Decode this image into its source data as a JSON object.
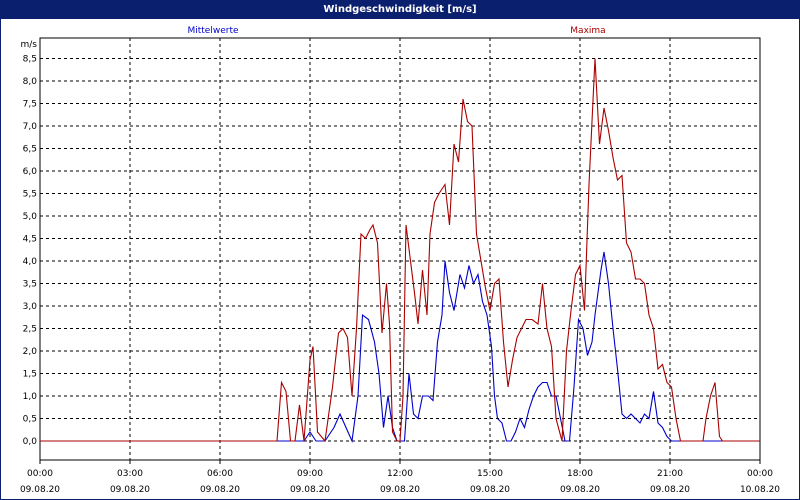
{
  "chart_data": {
    "type": "line",
    "title": "Windgeschwindigkeit [m/s]",
    "ylabel": "m/s",
    "ylim": [
      0,
      8.75
    ],
    "yticks": [
      "0,0",
      "0,5",
      "1,0",
      "1,5",
      "2,0",
      "2,5",
      "3,0",
      "3,5",
      "4,0",
      "4,5",
      "5,0",
      "5,5",
      "6,0",
      "6,5",
      "7,0",
      "7,5",
      "8,0",
      "8,5"
    ],
    "xlim": [
      0,
      24
    ],
    "xticks": [
      {
        "time": "00:00",
        "date": "09.08.20"
      },
      {
        "time": "03:00",
        "date": "09.08.20"
      },
      {
        "time": "06:00",
        "date": "09.08.20"
      },
      {
        "time": "09:00",
        "date": "09.08.20"
      },
      {
        "time": "12:00",
        "date": "09.08.20"
      },
      {
        "time": "15:00",
        "date": "09.08.20"
      },
      {
        "time": "18:00",
        "date": "09.08.20"
      },
      {
        "time": "21:00",
        "date": "09.08.20"
      },
      {
        "time": "00:00",
        "date": "10.08.20"
      }
    ],
    "grid": true,
    "series": [
      {
        "name": "Mittelwerte",
        "color": "#0000cc",
        "points": [
          [
            0,
            0
          ],
          [
            8.8,
            0
          ],
          [
            9.0,
            0.2
          ],
          [
            9.2,
            0
          ],
          [
            9.5,
            0
          ],
          [
            9.8,
            0.3
          ],
          [
            10.0,
            0.6
          ],
          [
            10.2,
            0.3
          ],
          [
            10.4,
            0
          ],
          [
            10.6,
            1.0
          ],
          [
            10.75,
            2.8
          ],
          [
            10.95,
            2.7
          ],
          [
            11.15,
            2.2
          ],
          [
            11.3,
            1.5
          ],
          [
            11.45,
            0.3
          ],
          [
            11.6,
            1.0
          ],
          [
            11.75,
            0.3
          ],
          [
            11.9,
            0
          ],
          [
            12.15,
            0
          ],
          [
            12.3,
            1.5
          ],
          [
            12.45,
            0.6
          ],
          [
            12.6,
            0.5
          ],
          [
            12.75,
            1.0
          ],
          [
            12.95,
            1.0
          ],
          [
            13.1,
            0.9
          ],
          [
            13.25,
            2.2
          ],
          [
            13.4,
            2.8
          ],
          [
            13.5,
            4.0
          ],
          [
            13.65,
            3.3
          ],
          [
            13.8,
            2.9
          ],
          [
            14.0,
            3.7
          ],
          [
            14.15,
            3.4
          ],
          [
            14.3,
            3.9
          ],
          [
            14.45,
            3.5
          ],
          [
            14.6,
            3.7
          ],
          [
            14.75,
            3.1
          ],
          [
            14.9,
            2.8
          ],
          [
            15.05,
            2.1
          ],
          [
            15.15,
            1.0
          ],
          [
            15.25,
            0.5
          ],
          [
            15.4,
            0.4
          ],
          [
            15.55,
            0
          ],
          [
            15.7,
            0
          ],
          [
            15.85,
            0.2
          ],
          [
            16.0,
            0.5
          ],
          [
            16.15,
            0.3
          ],
          [
            16.3,
            0.7
          ],
          [
            16.45,
            1.0
          ],
          [
            16.6,
            1.2
          ],
          [
            16.75,
            1.3
          ],
          [
            16.9,
            1.3
          ],
          [
            17.05,
            1.0
          ],
          [
            17.2,
            1.0
          ],
          [
            17.35,
            0.5
          ],
          [
            17.5,
            0
          ],
          [
            17.65,
            0
          ],
          [
            17.8,
            1.2
          ],
          [
            17.95,
            2.7
          ],
          [
            18.1,
            2.5
          ],
          [
            18.25,
            1.9
          ],
          [
            18.4,
            2.2
          ],
          [
            18.5,
            2.8
          ],
          [
            18.7,
            3.8
          ],
          [
            18.8,
            4.2
          ],
          [
            18.95,
            3.5
          ],
          [
            19.1,
            2.5
          ],
          [
            19.25,
            1.6
          ],
          [
            19.4,
            0.6
          ],
          [
            19.55,
            0.5
          ],
          [
            19.7,
            0.6
          ],
          [
            19.85,
            0.5
          ],
          [
            20.0,
            0.4
          ],
          [
            20.15,
            0.6
          ],
          [
            20.3,
            0.5
          ],
          [
            20.45,
            1.1
          ],
          [
            20.6,
            0.4
          ],
          [
            20.75,
            0.3
          ],
          [
            20.9,
            0.1
          ],
          [
            21.05,
            0
          ],
          [
            24,
            0
          ]
        ]
      },
      {
        "name": "Maxima",
        "color": "#aa0000",
        "points": [
          [
            0,
            0
          ],
          [
            7.9,
            0
          ],
          [
            8.05,
            1.3
          ],
          [
            8.2,
            1.1
          ],
          [
            8.35,
            0
          ],
          [
            8.5,
            0
          ],
          [
            8.65,
            0.8
          ],
          [
            8.8,
            0
          ],
          [
            9.0,
            1.8
          ],
          [
            9.1,
            2.1
          ],
          [
            9.25,
            0.2
          ],
          [
            9.5,
            0
          ],
          [
            9.75,
            1.2
          ],
          [
            9.95,
            2.4
          ],
          [
            10.1,
            2.5
          ],
          [
            10.25,
            2.3
          ],
          [
            10.4,
            1.0
          ],
          [
            10.55,
            2.5
          ],
          [
            10.7,
            4.6
          ],
          [
            10.85,
            4.5
          ],
          [
            11.0,
            4.7
          ],
          [
            11.1,
            4.8
          ],
          [
            11.25,
            4.4
          ],
          [
            11.4,
            2.4
          ],
          [
            11.55,
            3.5
          ],
          [
            11.65,
            2.6
          ],
          [
            11.75,
            0.2
          ],
          [
            11.9,
            0
          ],
          [
            12.0,
            0
          ],
          [
            12.1,
            1.0
          ],
          [
            12.2,
            4.8
          ],
          [
            12.35,
            4.0
          ],
          [
            12.5,
            3.2
          ],
          [
            12.6,
            2.6
          ],
          [
            12.75,
            3.8
          ],
          [
            12.9,
            2.8
          ],
          [
            13.0,
            4.6
          ],
          [
            13.15,
            5.3
          ],
          [
            13.3,
            5.5
          ],
          [
            13.5,
            5.7
          ],
          [
            13.65,
            4.8
          ],
          [
            13.8,
            6.6
          ],
          [
            13.95,
            6.2
          ],
          [
            14.1,
            7.6
          ],
          [
            14.25,
            7.1
          ],
          [
            14.4,
            7.0
          ],
          [
            14.55,
            4.6
          ],
          [
            14.7,
            4.0
          ],
          [
            14.85,
            3.4
          ],
          [
            15.0,
            2.9
          ],
          [
            15.15,
            3.5
          ],
          [
            15.3,
            3.6
          ],
          [
            15.45,
            2.2
          ],
          [
            15.6,
            1.2
          ],
          [
            15.75,
            1.8
          ],
          [
            15.9,
            2.3
          ],
          [
            16.05,
            2.5
          ],
          [
            16.2,
            2.7
          ],
          [
            16.4,
            2.7
          ],
          [
            16.6,
            2.6
          ],
          [
            16.75,
            3.5
          ],
          [
            16.9,
            2.5
          ],
          [
            17.05,
            2.1
          ],
          [
            17.2,
            0.5
          ],
          [
            17.4,
            0
          ],
          [
            17.55,
            2.0
          ],
          [
            17.7,
            2.9
          ],
          [
            17.85,
            3.7
          ],
          [
            18.0,
            3.9
          ],
          [
            18.15,
            2.9
          ],
          [
            18.3,
            5.7
          ],
          [
            18.5,
            8.5
          ],
          [
            18.65,
            6.6
          ],
          [
            18.8,
            7.4
          ],
          [
            18.95,
            6.9
          ],
          [
            19.1,
            6.3
          ],
          [
            19.25,
            5.8
          ],
          [
            19.4,
            5.9
          ],
          [
            19.55,
            4.4
          ],
          [
            19.7,
            4.2
          ],
          [
            19.85,
            3.6
          ],
          [
            20.0,
            3.6
          ],
          [
            20.15,
            3.5
          ],
          [
            20.3,
            2.8
          ],
          [
            20.45,
            2.5
          ],
          [
            20.6,
            1.6
          ],
          [
            20.75,
            1.7
          ],
          [
            20.9,
            1.3
          ],
          [
            21.05,
            1.2
          ],
          [
            21.2,
            0.5
          ],
          [
            21.35,
            0
          ],
          [
            22.1,
            0
          ],
          [
            22.2,
            0.5
          ],
          [
            22.35,
            1.0
          ],
          [
            22.5,
            1.3
          ],
          [
            22.65,
            0.1
          ],
          [
            22.75,
            0
          ],
          [
            24,
            0
          ]
        ]
      }
    ]
  }
}
